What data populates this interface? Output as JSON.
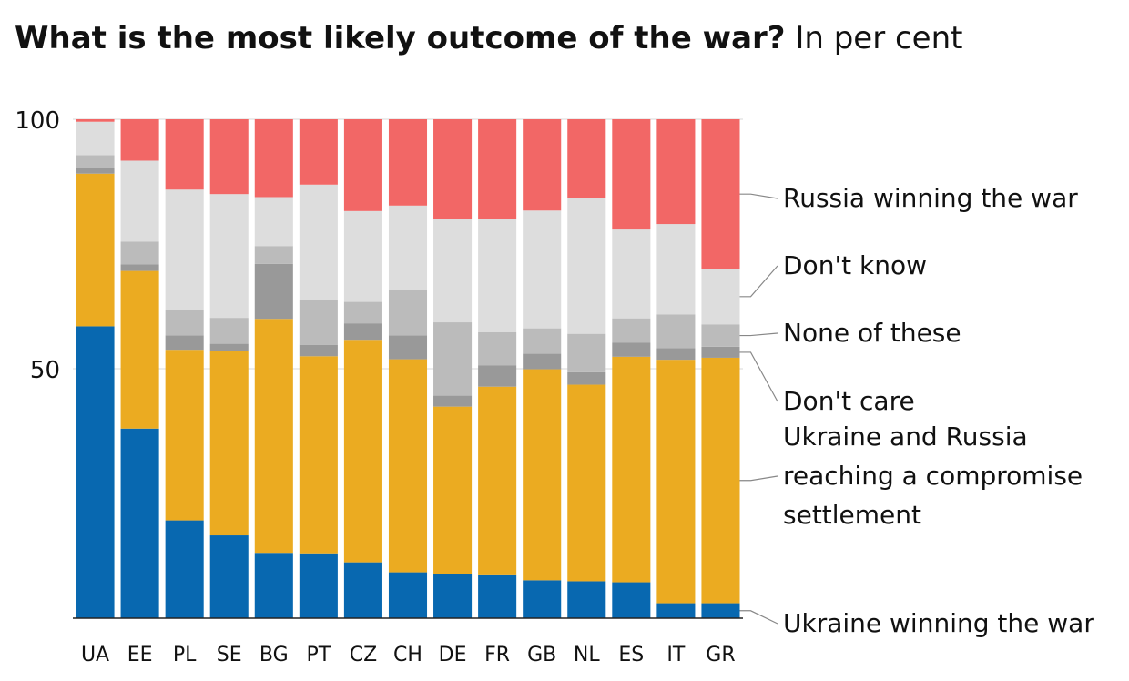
{
  "title": "What is the most likely outcome of the war?",
  "subtitle": "In per cent",
  "chart_data": {
    "type": "bar",
    "stacked": true,
    "categories": [
      "UA",
      "EE",
      "PL",
      "SE",
      "BG",
      "PT",
      "CZ",
      "CH",
      "DE",
      "FR",
      "GB",
      "NL",
      "ES",
      "IT",
      "GR"
    ],
    "series": [
      {
        "name": "Ukraine winning the war",
        "color": "#0868b0",
        "values": [
          58.5,
          38.0,
          19.6,
          16.6,
          13.1,
          13.0,
          11.2,
          9.2,
          8.8,
          8.6,
          7.6,
          7.4,
          7.2,
          3.0,
          3.0
        ]
      },
      {
        "name": "Ukraine and Russia reaching a compromise settlement",
        "color": "#ebab21",
        "values": [
          30.6,
          31.6,
          34.2,
          37.0,
          46.9,
          39.5,
          44.6,
          42.7,
          33.6,
          37.8,
          42.3,
          39.4,
          45.2,
          48.8,
          49.2
        ]
      },
      {
        "name": "Don't care",
        "color": "#999999",
        "values": [
          1.1,
          1.3,
          2.9,
          1.4,
          11.0,
          2.3,
          3.3,
          4.8,
          2.2,
          4.3,
          3.1,
          2.5,
          2.8,
          2.3,
          2.2
        ]
      },
      {
        "name": "None of these",
        "color": "#bbbbbb",
        "values": [
          2.6,
          4.6,
          5.0,
          5.2,
          3.6,
          9.0,
          4.3,
          9.0,
          14.7,
          6.6,
          5.1,
          7.7,
          4.9,
          6.8,
          4.5
        ]
      },
      {
        "name": "Don't know",
        "color": "#dddddd",
        "values": [
          6.7,
          16.2,
          24.2,
          24.8,
          9.8,
          23.1,
          18.2,
          17.0,
          20.8,
          22.8,
          23.6,
          27.3,
          17.8,
          18.1,
          11.1
        ]
      },
      {
        "name": "Russia winning the war",
        "color": "#f26766",
        "values": [
          0.5,
          8.3,
          14.1,
          15.0,
          15.6,
          13.1,
          18.4,
          17.3,
          19.9,
          19.9,
          18.3,
          15.7,
          22.1,
          21.0,
          30.0
        ]
      }
    ],
    "ylim": [
      0,
      100
    ],
    "yticks": [
      50,
      100
    ],
    "legend_position": "right",
    "xlabel": "",
    "ylabel": ""
  }
}
